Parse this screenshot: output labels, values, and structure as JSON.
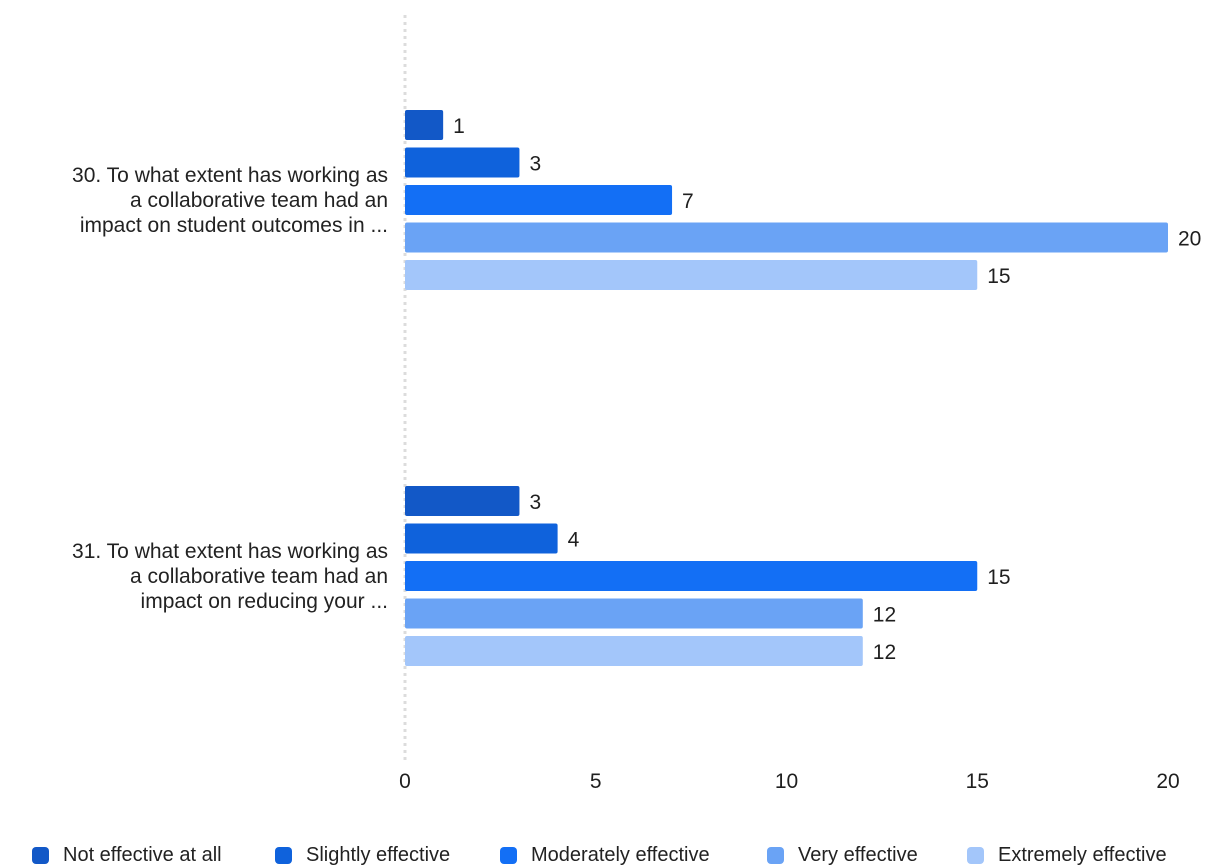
{
  "chart_data": {
    "type": "bar",
    "orientation": "horizontal",
    "categories": [
      "30. To what extent has working as a collaborative team had an impact on student outcomes in ...",
      "31. To what extent has working as a collaborative team had an impact on reducing your ..."
    ],
    "category_lines": [
      [
        "30. To what extent has working as",
        "a collaborative team had an",
        "impact on student outcomes in ..."
      ],
      [
        "31. To what extent has working as",
        "a collaborative team had an",
        "impact on reducing your ..."
      ]
    ],
    "series": [
      {
        "name": "Not effective at all",
        "values": [
          1,
          3
        ],
        "color": "#1258c7"
      },
      {
        "name": "Slightly effective",
        "values": [
          3,
          4
        ],
        "color": "#0f62dc"
      },
      {
        "name": "Moderately effective",
        "values": [
          7,
          15
        ],
        "color": "#136ff5"
      },
      {
        "name": "Very effective",
        "values": [
          20,
          12
        ],
        "color": "#6aa3f5"
      },
      {
        "name": "Extremely effective",
        "values": [
          15,
          12
        ],
        "color": "#a3c6fa"
      }
    ],
    "xlim": [
      0,
      20
    ],
    "xticks": [
      0,
      5,
      10,
      15,
      20
    ],
    "data_labels": true,
    "legend_position": "bottom",
    "grid": false
  }
}
